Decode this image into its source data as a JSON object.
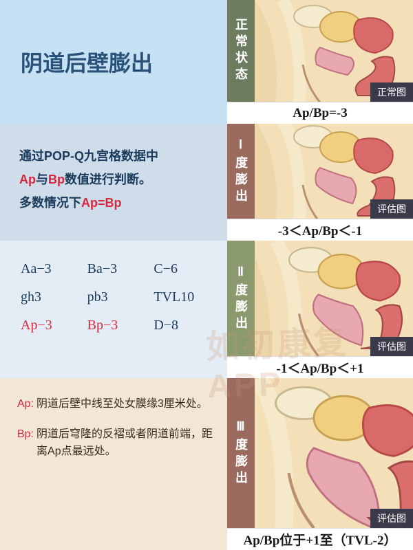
{
  "title": "阴道后壁膨出",
  "description": {
    "line1_pre": "通过POP-Q九宫格数据中",
    "hl1": "Ap",
    "mid1": "与",
    "hl2": "Bp",
    "post1": "数值进行判断。",
    "line2_pre": "多数情况下",
    "hl3": "Ap=Bp"
  },
  "popq": {
    "cells": [
      {
        "v": "Aa−3",
        "hl": false
      },
      {
        "v": "Ba−3",
        "hl": false
      },
      {
        "v": "C−6",
        "hl": false
      },
      {
        "v": "gh3",
        "hl": false
      },
      {
        "v": "pb3",
        "hl": false
      },
      {
        "v": "TVL10",
        "hl": false
      },
      {
        "v": "Ap−3",
        "hl": true
      },
      {
        "v": "Bp−3",
        "hl": true
      },
      {
        "v": "D−8",
        "hl": false
      }
    ]
  },
  "defs": [
    {
      "term": "Ap:",
      "body": "阴道后壁中线至处女膜缘3厘米处。"
    },
    {
      "term": "Bp:",
      "body": "阴道后穹隆的反褶或者阴道前端，距离Ap点最远处。"
    }
  ],
  "stages": [
    {
      "vlabel": "正常状态",
      "tag": "正常图",
      "formula": "Ap/Bp=-3"
    },
    {
      "vlabel": "Ⅰ度膨出",
      "tag": "评估图",
      "formula": "-3＜Ap/Bp＜-1"
    },
    {
      "vlabel": "Ⅱ度膨出",
      "tag": "评估图",
      "formula": "-1＜Ap/Bp＜+1"
    },
    {
      "vlabel": "Ⅲ度膨出",
      "tag": "评估图",
      "formula": "Ap/Bp位于+1至（TVL-2）"
    }
  ],
  "watermark": "如初康复APP",
  "colors": {
    "title_bg": "#c6e0f4",
    "desc_bg": "#cfddeb",
    "table_bg": "#e4edf6",
    "defs_bg": "#f2e6d6",
    "highlight": "#d6283e",
    "title_text": "#2a5278",
    "vlabel_s0": "#6d7b5e",
    "vlabel_s1": "#9a6a5e",
    "vlabel_s2": "#8a9a6e",
    "vlabel_s3": "#9a6a5e",
    "tag_bg": "#3a3a4a",
    "skin_light": "#f4e0b8",
    "skin_dark": "#e8cfa0",
    "muscle": "#d96a6a",
    "organ": "#e8a8b0",
    "bone": "#f5ecd0",
    "bladder": "#f0d080"
  },
  "typography": {
    "title_size": 32,
    "body_size": 18,
    "table_size": 20,
    "defs_size": 16,
    "formula_size": 19,
    "vlabel_size": 18
  }
}
